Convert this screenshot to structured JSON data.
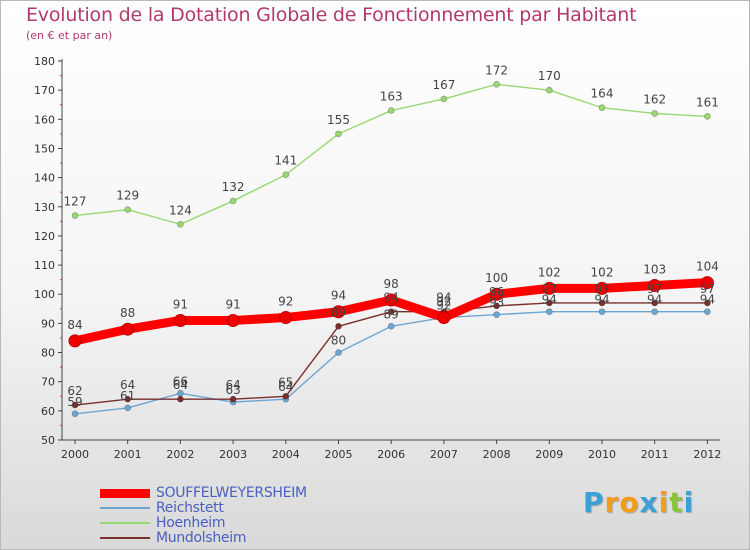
{
  "chart_data": {
    "type": "line",
    "title": "Evolution de la Dotation Globale de Fonctionnement par Habitant",
    "subtitle": "(en € et par an)",
    "categories": [
      "2000",
      "2001",
      "2002",
      "2003",
      "2004",
      "2005",
      "2006",
      "2007",
      "2008",
      "2009",
      "2010",
      "2011",
      "2012"
    ],
    "ylim": [
      50,
      180
    ],
    "yticks": [
      50,
      60,
      70,
      80,
      90,
      100,
      110,
      120,
      130,
      140,
      150,
      160,
      170,
      180
    ],
    "grid": false,
    "legend_position": "bottom-left",
    "series": [
      {
        "name": "SOUFFELWEYERSHEIM",
        "color": "#ff0000",
        "values": [
          84,
          88,
          91,
          91,
          92,
          94,
          98,
          92,
          100,
          102,
          102,
          103,
          104
        ]
      },
      {
        "name": "Reichstett",
        "color": "#6ea6d2",
        "values": [
          59,
          61,
          66,
          63,
          64,
          80,
          89,
          92,
          93,
          94,
          94,
          94,
          94
        ]
      },
      {
        "name": "Hoenheim",
        "color": "#98d870",
        "values": [
          127,
          129,
          124,
          132,
          141,
          155,
          163,
          167,
          172,
          170,
          164,
          162,
          161
        ]
      },
      {
        "name": "Mundolsheim",
        "color": "#7a2e2e",
        "values": [
          62,
          64,
          64,
          64,
          65,
          89,
          94,
          94,
          96,
          97,
          97,
          97,
          97
        ]
      }
    ]
  },
  "logo": {
    "letters": [
      "P",
      "r",
      "o",
      "x",
      "i",
      "t",
      "i"
    ]
  }
}
